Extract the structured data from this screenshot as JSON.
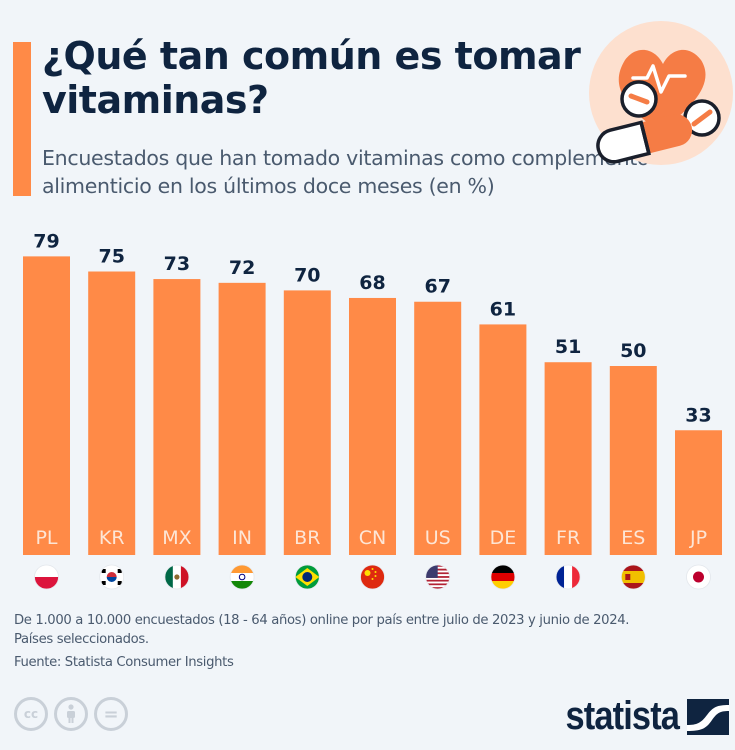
{
  "header": {
    "title": "¿Qué tan común es tomar vitaminas?",
    "subtitle": "Encuestados que han tomado vitaminas como complemento alimenticio en los últimos doce meses (en %)",
    "hero_icon": "heart-pulse-pills-icon"
  },
  "colors": {
    "accent": "#ff8a47",
    "bar": "#ff8a47",
    "text_dark": "#0f2440",
    "background": "#f1f5f9"
  },
  "chart_data": {
    "type": "bar",
    "title": "¿Qué tan común es tomar vitaminas?",
    "subtitle": "Encuestados que han tomado vitaminas como complemento alimenticio en los últimos doce meses (en %)",
    "xlabel": "",
    "ylabel": "",
    "ylim": [
      0,
      79
    ],
    "grid": false,
    "categories": [
      "PL",
      "KR",
      "MX",
      "IN",
      "BR",
      "CN",
      "US",
      "DE",
      "FR",
      "ES",
      "JP"
    ],
    "values": [
      79,
      75,
      73,
      72,
      70,
      68,
      67,
      61,
      51,
      50,
      33
    ],
    "flags": [
      "poland-flag-icon",
      "south-korea-flag-icon",
      "mexico-flag-icon",
      "india-flag-icon",
      "brazil-flag-icon",
      "china-flag-icon",
      "usa-flag-icon",
      "germany-flag-icon",
      "france-flag-icon",
      "spain-flag-icon",
      "japan-flag-icon"
    ]
  },
  "footer": {
    "note_line1": "De 1.000 a 10.000 encuestados (18 - 64 años) online por país entre julio de 2023 y junio de 2024.",
    "note_line2": "Países seleccionados.",
    "source": "Fuente: Statista Consumer Insights",
    "license_icons": [
      "cc-icon",
      "attribution-icon",
      "no-derivatives-icon"
    ],
    "cc_label": "cc",
    "nd_label": "=",
    "logo": "statista"
  }
}
